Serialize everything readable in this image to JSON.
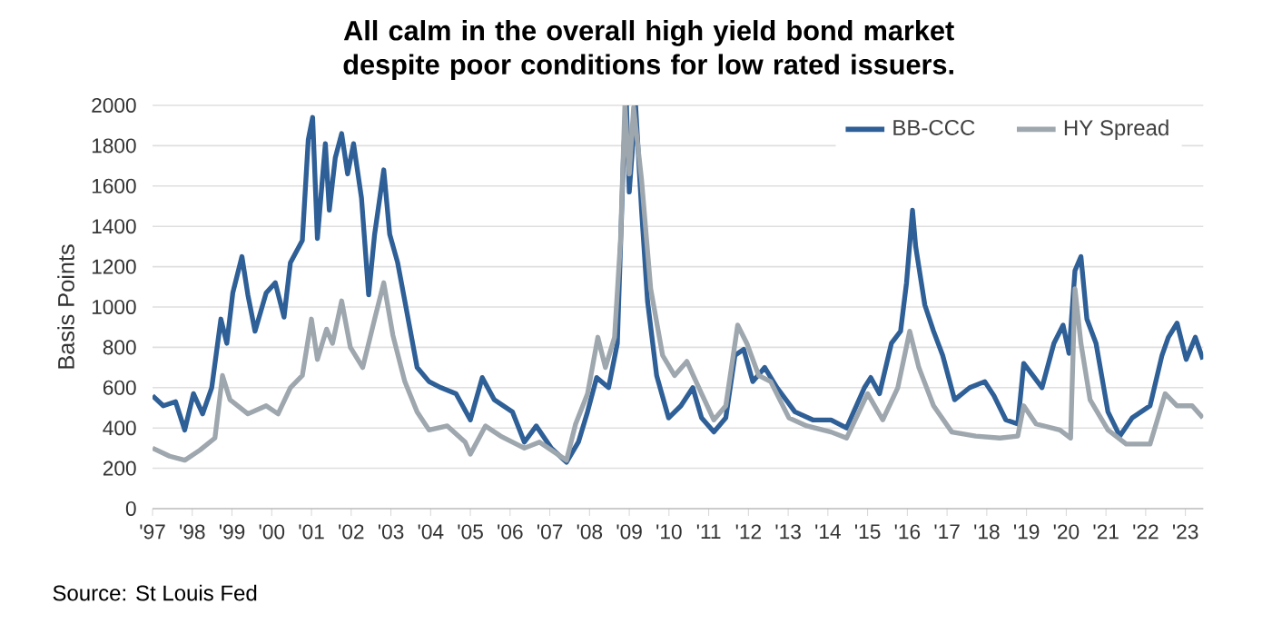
{
  "chart_data": {
    "type": "line",
    "title": "All calm in the overall high yield bond market despite poor conditions for low rated issuers.",
    "ylabel": "Basis Points",
    "annotations": [
      "Source: St Louis Fed"
    ],
    "xlim": [
      1997,
      2023.45
    ],
    "ylim": [
      0,
      2000
    ],
    "xticks": [
      {
        "value": 1997,
        "label": "'97"
      },
      {
        "value": 1998,
        "label": "'98"
      },
      {
        "value": 1999,
        "label": "'99"
      },
      {
        "value": 2000,
        "label": "'00"
      },
      {
        "value": 2001,
        "label": "'01"
      },
      {
        "value": 2002,
        "label": "'02"
      },
      {
        "value": 2003,
        "label": "'03"
      },
      {
        "value": 2004,
        "label": "'04"
      },
      {
        "value": 2005,
        "label": "'05"
      },
      {
        "value": 2006,
        "label": "'06"
      },
      {
        "value": 2007,
        "label": "'07"
      },
      {
        "value": 2008,
        "label": "'08"
      },
      {
        "value": 2009,
        "label": "'09"
      },
      {
        "value": 2010,
        "label": "'10"
      },
      {
        "value": 2011,
        "label": "'11"
      },
      {
        "value": 2012,
        "label": "'12"
      },
      {
        "value": 2013,
        "label": "'13"
      },
      {
        "value": 2014,
        "label": "'14"
      },
      {
        "value": 2015,
        "label": "'15"
      },
      {
        "value": 2016,
        "label": "'16"
      },
      {
        "value": 2017,
        "label": "'17"
      },
      {
        "value": 2018,
        "label": "'18"
      },
      {
        "value": 2019,
        "label": "'19"
      },
      {
        "value": 2020,
        "label": "'20"
      },
      {
        "value": 2021,
        "label": "'21"
      },
      {
        "value": 2022,
        "label": "'22"
      },
      {
        "value": 2023,
        "label": "'23"
      }
    ],
    "yticks": [
      0,
      200,
      400,
      600,
      800,
      1000,
      1200,
      1400,
      1600,
      1800,
      2000
    ],
    "grid": "y",
    "legend": "top right",
    "marker": "none",
    "line_style": "solid",
    "series": [
      {
        "name": "BB-CCC",
        "color": "#2e5f96",
        "x": [
          1997.0,
          1997.27,
          1997.58,
          1997.81,
          1998.03,
          1998.26,
          1998.49,
          1998.72,
          1998.87,
          1999.02,
          1999.25,
          1999.4,
          1999.58,
          1999.86,
          2000.09,
          2000.31,
          2000.47,
          2000.77,
          2000.92,
          2001.03,
          2001.15,
          2001.35,
          2001.45,
          2001.6,
          2001.76,
          2001.91,
          2002.06,
          2002.26,
          2002.44,
          2002.59,
          2002.82,
          2002.97,
          2003.17,
          2003.35,
          2003.66,
          2003.96,
          2004.26,
          2004.64,
          2005.0,
          2005.3,
          2005.6,
          2006.06,
          2006.36,
          2006.66,
          2007.04,
          2007.42,
          2007.72,
          2007.95,
          2008.18,
          2008.48,
          2008.7,
          2008.86,
          2008.93,
          2009.0,
          2009.16,
          2009.31,
          2009.46,
          2009.69,
          2009.99,
          2010.3,
          2010.6,
          2010.82,
          2011.13,
          2011.43,
          2011.66,
          2011.88,
          2012.11,
          2012.41,
          2012.72,
          2013.17,
          2013.62,
          2014.08,
          2014.47,
          2014.92,
          2015.08,
          2015.3,
          2015.6,
          2015.83,
          2015.98,
          2016.13,
          2016.21,
          2016.44,
          2016.66,
          2016.89,
          2017.19,
          2017.57,
          2017.95,
          2018.18,
          2018.48,
          2018.78,
          2018.93,
          2019.16,
          2019.39,
          2019.69,
          2019.92,
          2020.07,
          2020.22,
          2020.37,
          2020.52,
          2020.75,
          2021.05,
          2021.35,
          2021.66,
          2022.11,
          2022.41,
          2022.57,
          2022.79,
          2023.02,
          2023.25,
          2023.44
        ],
        "values": [
          560,
          510,
          530,
          390,
          570,
          470,
          600,
          940,
          820,
          1070,
          1250,
          1060,
          880,
          1070,
          1120,
          950,
          1220,
          1330,
          1830,
          1940,
          1340,
          1810,
          1480,
          1740,
          1860,
          1660,
          1810,
          1540,
          1060,
          1360,
          1680,
          1360,
          1220,
          1030,
          700,
          630,
          600,
          570,
          440,
          650,
          540,
          480,
          330,
          410,
          300,
          230,
          330,
          480,
          650,
          600,
          820,
          1780,
          2000,
          1570,
          2000,
          1480,
          1030,
          660,
          450,
          510,
          600,
          450,
          380,
          450,
          760,
          790,
          630,
          700,
          600,
          480,
          440,
          440,
          400,
          600,
          650,
          570,
          820,
          880,
          1120,
          1480,
          1300,
          1010,
          880,
          760,
          540,
          600,
          630,
          560,
          440,
          420,
          720,
          660,
          600,
          820,
          910,
          770,
          1180,
          1250,
          940,
          820,
          480,
          360,
          450,
          510,
          760,
          850,
          920,
          740,
          850,
          740
        ]
      },
      {
        "name": "HY Spread",
        "color": "#9ea7ae",
        "x": [
          1997.0,
          1997.43,
          1997.81,
          1998.19,
          1998.57,
          1998.76,
          1998.95,
          1999.4,
          1999.86,
          2000.16,
          2000.47,
          2000.77,
          2001.0,
          2001.15,
          2001.38,
          2001.53,
          2001.76,
          2001.98,
          2002.29,
          2002.59,
          2002.82,
          2003.05,
          2003.35,
          2003.66,
          2003.96,
          2004.42,
          2004.87,
          2005.0,
          2005.38,
          2005.76,
          2006.36,
          2006.74,
          2007.42,
          2007.65,
          2007.95,
          2008.21,
          2008.4,
          2008.63,
          2008.78,
          2008.89,
          2009.0,
          2009.11,
          2009.31,
          2009.54,
          2009.84,
          2010.14,
          2010.45,
          2010.82,
          2011.13,
          2011.43,
          2011.73,
          2011.96,
          2012.26,
          2012.56,
          2013.02,
          2013.47,
          2014.08,
          2014.47,
          2015.0,
          2015.38,
          2015.76,
          2016.06,
          2016.29,
          2016.66,
          2017.12,
          2017.72,
          2018.33,
          2018.78,
          2018.93,
          2019.24,
          2019.84,
          2020.11,
          2020.22,
          2020.37,
          2020.6,
          2021.05,
          2021.51,
          2022.11,
          2022.49,
          2022.79,
          2023.17,
          2023.44
        ],
        "values": [
          300,
          260,
          240,
          290,
          350,
          660,
          540,
          470,
          510,
          470,
          600,
          660,
          940,
          740,
          890,
          820,
          1030,
          800,
          700,
          940,
          1120,
          860,
          630,
          480,
          390,
          410,
          330,
          270,
          410,
          360,
          300,
          330,
          240,
          420,
          570,
          850,
          700,
          850,
          1330,
          2000,
          1660,
          1990,
          1630,
          1090,
          760,
          660,
          730,
          570,
          440,
          510,
          910,
          820,
          660,
          630,
          450,
          410,
          380,
          350,
          570,
          440,
          600,
          880,
          700,
          510,
          380,
          360,
          350,
          360,
          510,
          420,
          390,
          350,
          1090,
          820,
          540,
          390,
          320,
          320,
          570,
          510,
          510,
          450
        ]
      }
    ]
  }
}
